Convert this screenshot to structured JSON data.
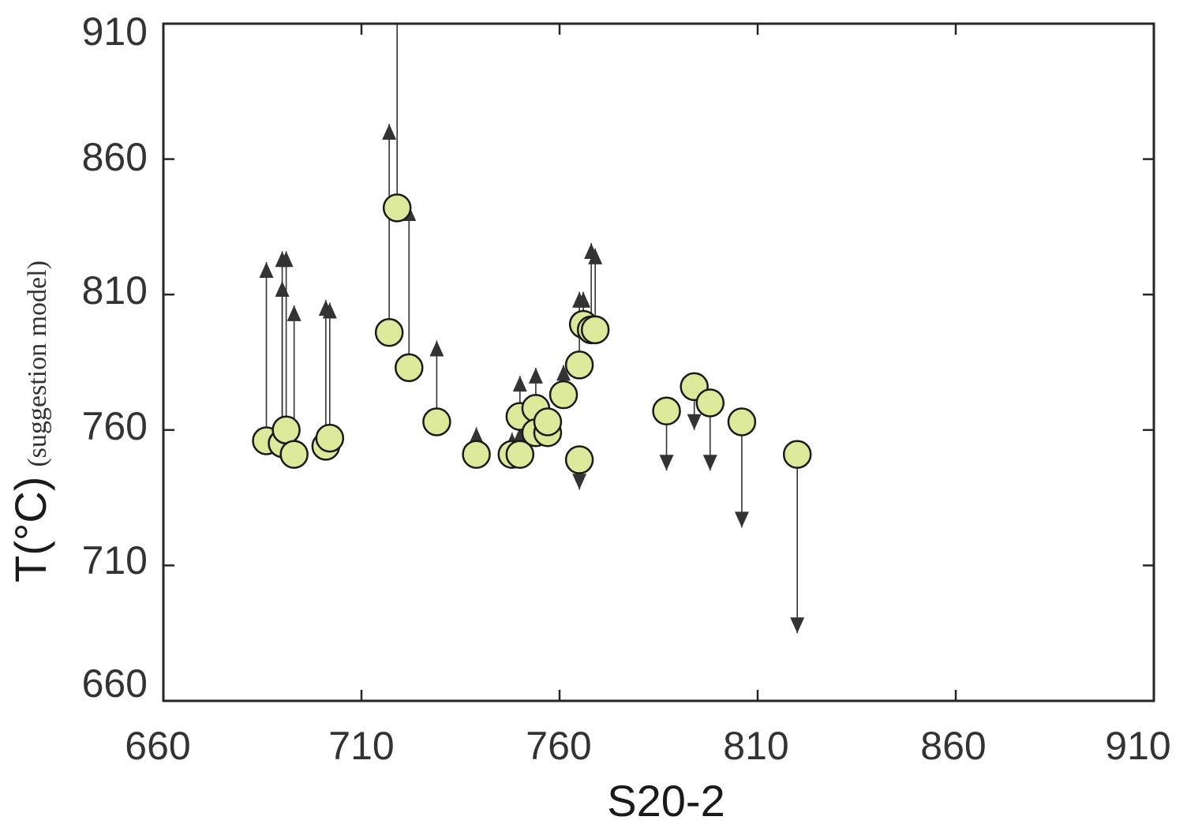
{
  "chart_data": {
    "type": "scatter",
    "xlabel": "S20-2",
    "ylabel_main": "T(°C)",
    "ylabel_sub": "(suggestion model)",
    "xlim": [
      660,
      910
    ],
    "ylim": [
      660,
      910
    ],
    "xticks": [
      "660",
      "710",
      "760",
      "810",
      "860",
      "910"
    ],
    "yticks": [
      "660",
      "710",
      "760",
      "810",
      "860",
      "910"
    ],
    "grid": false,
    "marker_color": "#dce89a",
    "marker_edge": "#1a1a1a",
    "arrow_color": "#333333",
    "points": [
      {
        "x": 686,
        "y": 756,
        "arrow_to": 822
      },
      {
        "x": 690,
        "y": 755,
        "arrow_to": 826
      },
      {
        "x": 690,
        "y": 755,
        "arrow_to": 815
      },
      {
        "x": 691,
        "y": 760,
        "arrow_to": 826
      },
      {
        "x": 693,
        "y": 751,
        "arrow_to": 806
      },
      {
        "x": 701,
        "y": 754,
        "arrow_to": 808
      },
      {
        "x": 702,
        "y": 757,
        "arrow_to": 807
      },
      {
        "x": 717,
        "y": 796,
        "arrow_to": 873
      },
      {
        "x": 719,
        "y": 842,
        "arrow_to": 912
      },
      {
        "x": 722,
        "y": 783,
        "arrow_to": 843
      },
      {
        "x": 729,
        "y": 763,
        "arrow_to": 793
      },
      {
        "x": 739,
        "y": 751,
        "arrow_to": 761
      },
      {
        "x": 748,
        "y": 751,
        "arrow_to": 759
      },
      {
        "x": 750,
        "y": 751,
        "arrow_to": 761
      },
      {
        "x": 750,
        "y": 765,
        "arrow_to": 780
      },
      {
        "x": 754,
        "y": 768,
        "arrow_to": 783
      },
      {
        "x": 754,
        "y": 759,
        "arrow_to": null
      },
      {
        "x": 757,
        "y": 759,
        "arrow_to": null
      },
      {
        "x": 757,
        "y": 763,
        "arrow_to": null
      },
      {
        "x": 761,
        "y": 773,
        "arrow_to": 784
      },
      {
        "x": 765,
        "y": 749,
        "arrow_to": 738
      },
      {
        "x": 765,
        "y": 784,
        "arrow_to": 811
      },
      {
        "x": 766,
        "y": 799,
        "arrow_to": 811
      },
      {
        "x": 768,
        "y": 797,
        "arrow_to": 829
      },
      {
        "x": 769,
        "y": 797,
        "arrow_to": 827
      },
      {
        "x": 787,
        "y": 767,
        "arrow_to": 745
      },
      {
        "x": 794,
        "y": 776,
        "arrow_to": 760
      },
      {
        "x": 798,
        "y": 770,
        "arrow_to": 745
      },
      {
        "x": 806,
        "y": 763,
        "arrow_to": 724
      },
      {
        "x": 820,
        "y": 751,
        "arrow_to": 685
      }
    ]
  }
}
